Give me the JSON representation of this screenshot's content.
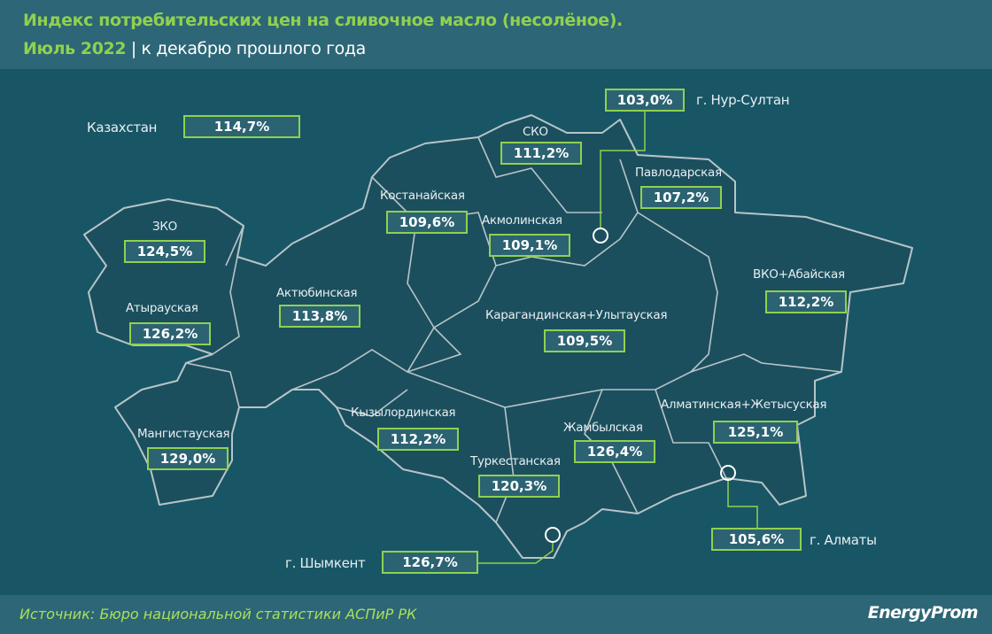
{
  "title": "Индекс потребительских цен на сливочное масло (несолёное).",
  "period": "Июль 2022",
  "separator": "|",
  "subtitle": "к декабрю прошлого года",
  "country": {
    "label": "Казахстан",
    "value": "114,7%"
  },
  "regions": [
    {
      "label": "ЗКО",
      "value": "124,5%"
    },
    {
      "label": "Атырауская",
      "value": "126,2%"
    },
    {
      "label": "Мангистауская",
      "value": "129,0%"
    },
    {
      "label": "Актюбинская",
      "value": "113,8%"
    },
    {
      "label": "Костанайская",
      "value": "109,6%"
    },
    {
      "label": "СКО",
      "value": "111,2%"
    },
    {
      "label": "Акмолинская",
      "value": "109,1%"
    },
    {
      "label": "Павлодарская",
      "value": "107,2%"
    },
    {
      "label": "ВКО+Абайская",
      "value": "112,2%"
    },
    {
      "label": "Карагандинская+Улытауская",
      "value": "109,5%"
    },
    {
      "label": "Кызылординская",
      "value": "112,2%"
    },
    {
      "label": "Туркестанская",
      "value": "120,3%"
    },
    {
      "label": "Жамбылская",
      "value": "126,4%"
    },
    {
      "label": "Алматинская+Жетысуская",
      "value": "125,1%"
    }
  ],
  "cities": [
    {
      "label": "г. Нур-Султан",
      "value": "103,0%"
    },
    {
      "label": "г. Алматы",
      "value": "105,6%"
    },
    {
      "label": "г. Шымкент",
      "value": "126,7%"
    }
  ],
  "source": "Источник: Бюро национальной статистики АСПиР РК",
  "logo": "EnergyProm",
  "colors": {
    "background": "#185666",
    "header": "#2d6676",
    "accent": "#8fd14f",
    "map_fill": "#1b4f5e",
    "borders": "#b8c4c8"
  }
}
